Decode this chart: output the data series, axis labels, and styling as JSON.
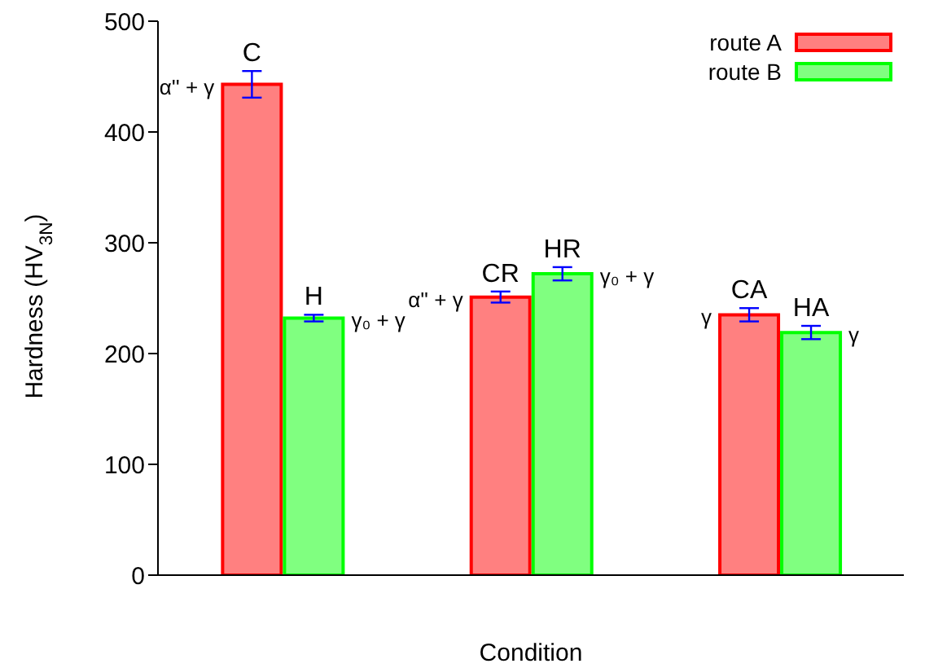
{
  "chart_data": {
    "type": "bar",
    "xlabel": "Condition",
    "ylabel": "Hardness (HV$_{3N}$)",
    "categories": [
      null,
      null,
      null
    ],
    "series": [
      {
        "name": "route A",
        "color": "#ff0000",
        "values": [
          443,
          251,
          235
        ],
        "errors": [
          12,
          5,
          6
        ],
        "value_labels": [
          "C",
          "CR",
          "CA"
        ]
      },
      {
        "name": "route B",
        "color": "#00ff00",
        "values": [
          232,
          272,
          219
        ],
        "errors": [
          3,
          6,
          6
        ],
        "value_labels": [
          "H",
          "HR",
          "HA"
        ]
      }
    ],
    "annotations": [
      "α'' + γ",
      "γ₀ + γ",
      "α'' + γ",
      "γ₀ + γ",
      "γ",
      "γ"
    ],
    "ylim": [
      0,
      500
    ],
    "yticks": [
      0,
      100,
      200,
      300,
      400,
      500
    ],
    "grid": false,
    "legend": "top right"
  }
}
